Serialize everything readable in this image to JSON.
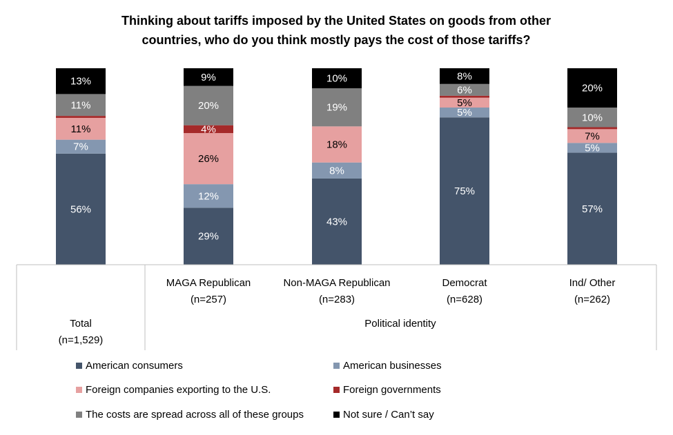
{
  "chart_data": {
    "type": "bar",
    "stacked": true,
    "title": "Thinking about tariffs imposed by the United States on goods from other countries, who do you think mostly pays the cost of those tariffs?",
    "title_lines": [
      "Thinking about tariffs imposed by the United States on goods from other",
      "countries, who do you think mostly pays the cost of those tariffs?"
    ],
    "categories": [
      {
        "name": "Total",
        "n": "(n=1,529)"
      },
      {
        "name": "MAGA Republican",
        "n": "(n=257)"
      },
      {
        "name": "Non-MAGA Republican",
        "n": "(n=283)"
      },
      {
        "name": "Democrat",
        "n": "(n=628)"
      },
      {
        "name": "Ind/ Other",
        "n": "(n=262)"
      }
    ],
    "group_label": "Political identity",
    "ylim": [
      0,
      100
    ],
    "series": [
      {
        "name": "American consumers",
        "color": "#44546a",
        "label_color": "#ffffff",
        "values": [
          56,
          29,
          43,
          75,
          57
        ],
        "labels": [
          "56%",
          "29%",
          "43%",
          "75%",
          "57%"
        ]
      },
      {
        "name": "American businesses",
        "color": "#8497b0",
        "label_color": "#ffffff",
        "values": [
          7,
          12,
          8,
          5,
          5
        ],
        "labels": [
          "7%",
          "12%",
          "8%",
          "5%",
          "5%"
        ]
      },
      {
        "name": "Foreign companies exporting to the U.S.",
        "color": "#e6a0a0",
        "label_color": "#000000",
        "values": [
          11,
          26,
          18,
          5,
          7
        ],
        "labels": [
          "11%",
          "26%",
          "18%",
          "5%",
          "7%"
        ]
      },
      {
        "name": "Foreign governments",
        "color": "#a52a2a",
        "label_color": "#ffffff",
        "values": [
          1,
          4,
          0,
          1,
          1
        ],
        "labels": [
          "",
          "4%",
          "",
          "",
          ""
        ]
      },
      {
        "name": "The costs are spread across all of these groups",
        "color": "#808080",
        "label_color": "#ffffff",
        "values": [
          11,
          20,
          19,
          6,
          10
        ],
        "labels": [
          "11%",
          "20%",
          "19%",
          "6%",
          "10%"
        ]
      },
      {
        "name": "Not sure / Can’t say",
        "color": "#000000",
        "label_color": "#ffffff",
        "values": [
          13,
          9,
          10,
          8,
          20
        ],
        "labels": [
          "13%",
          "9%",
          "10%",
          "8%",
          "20%"
        ]
      }
    ]
  }
}
